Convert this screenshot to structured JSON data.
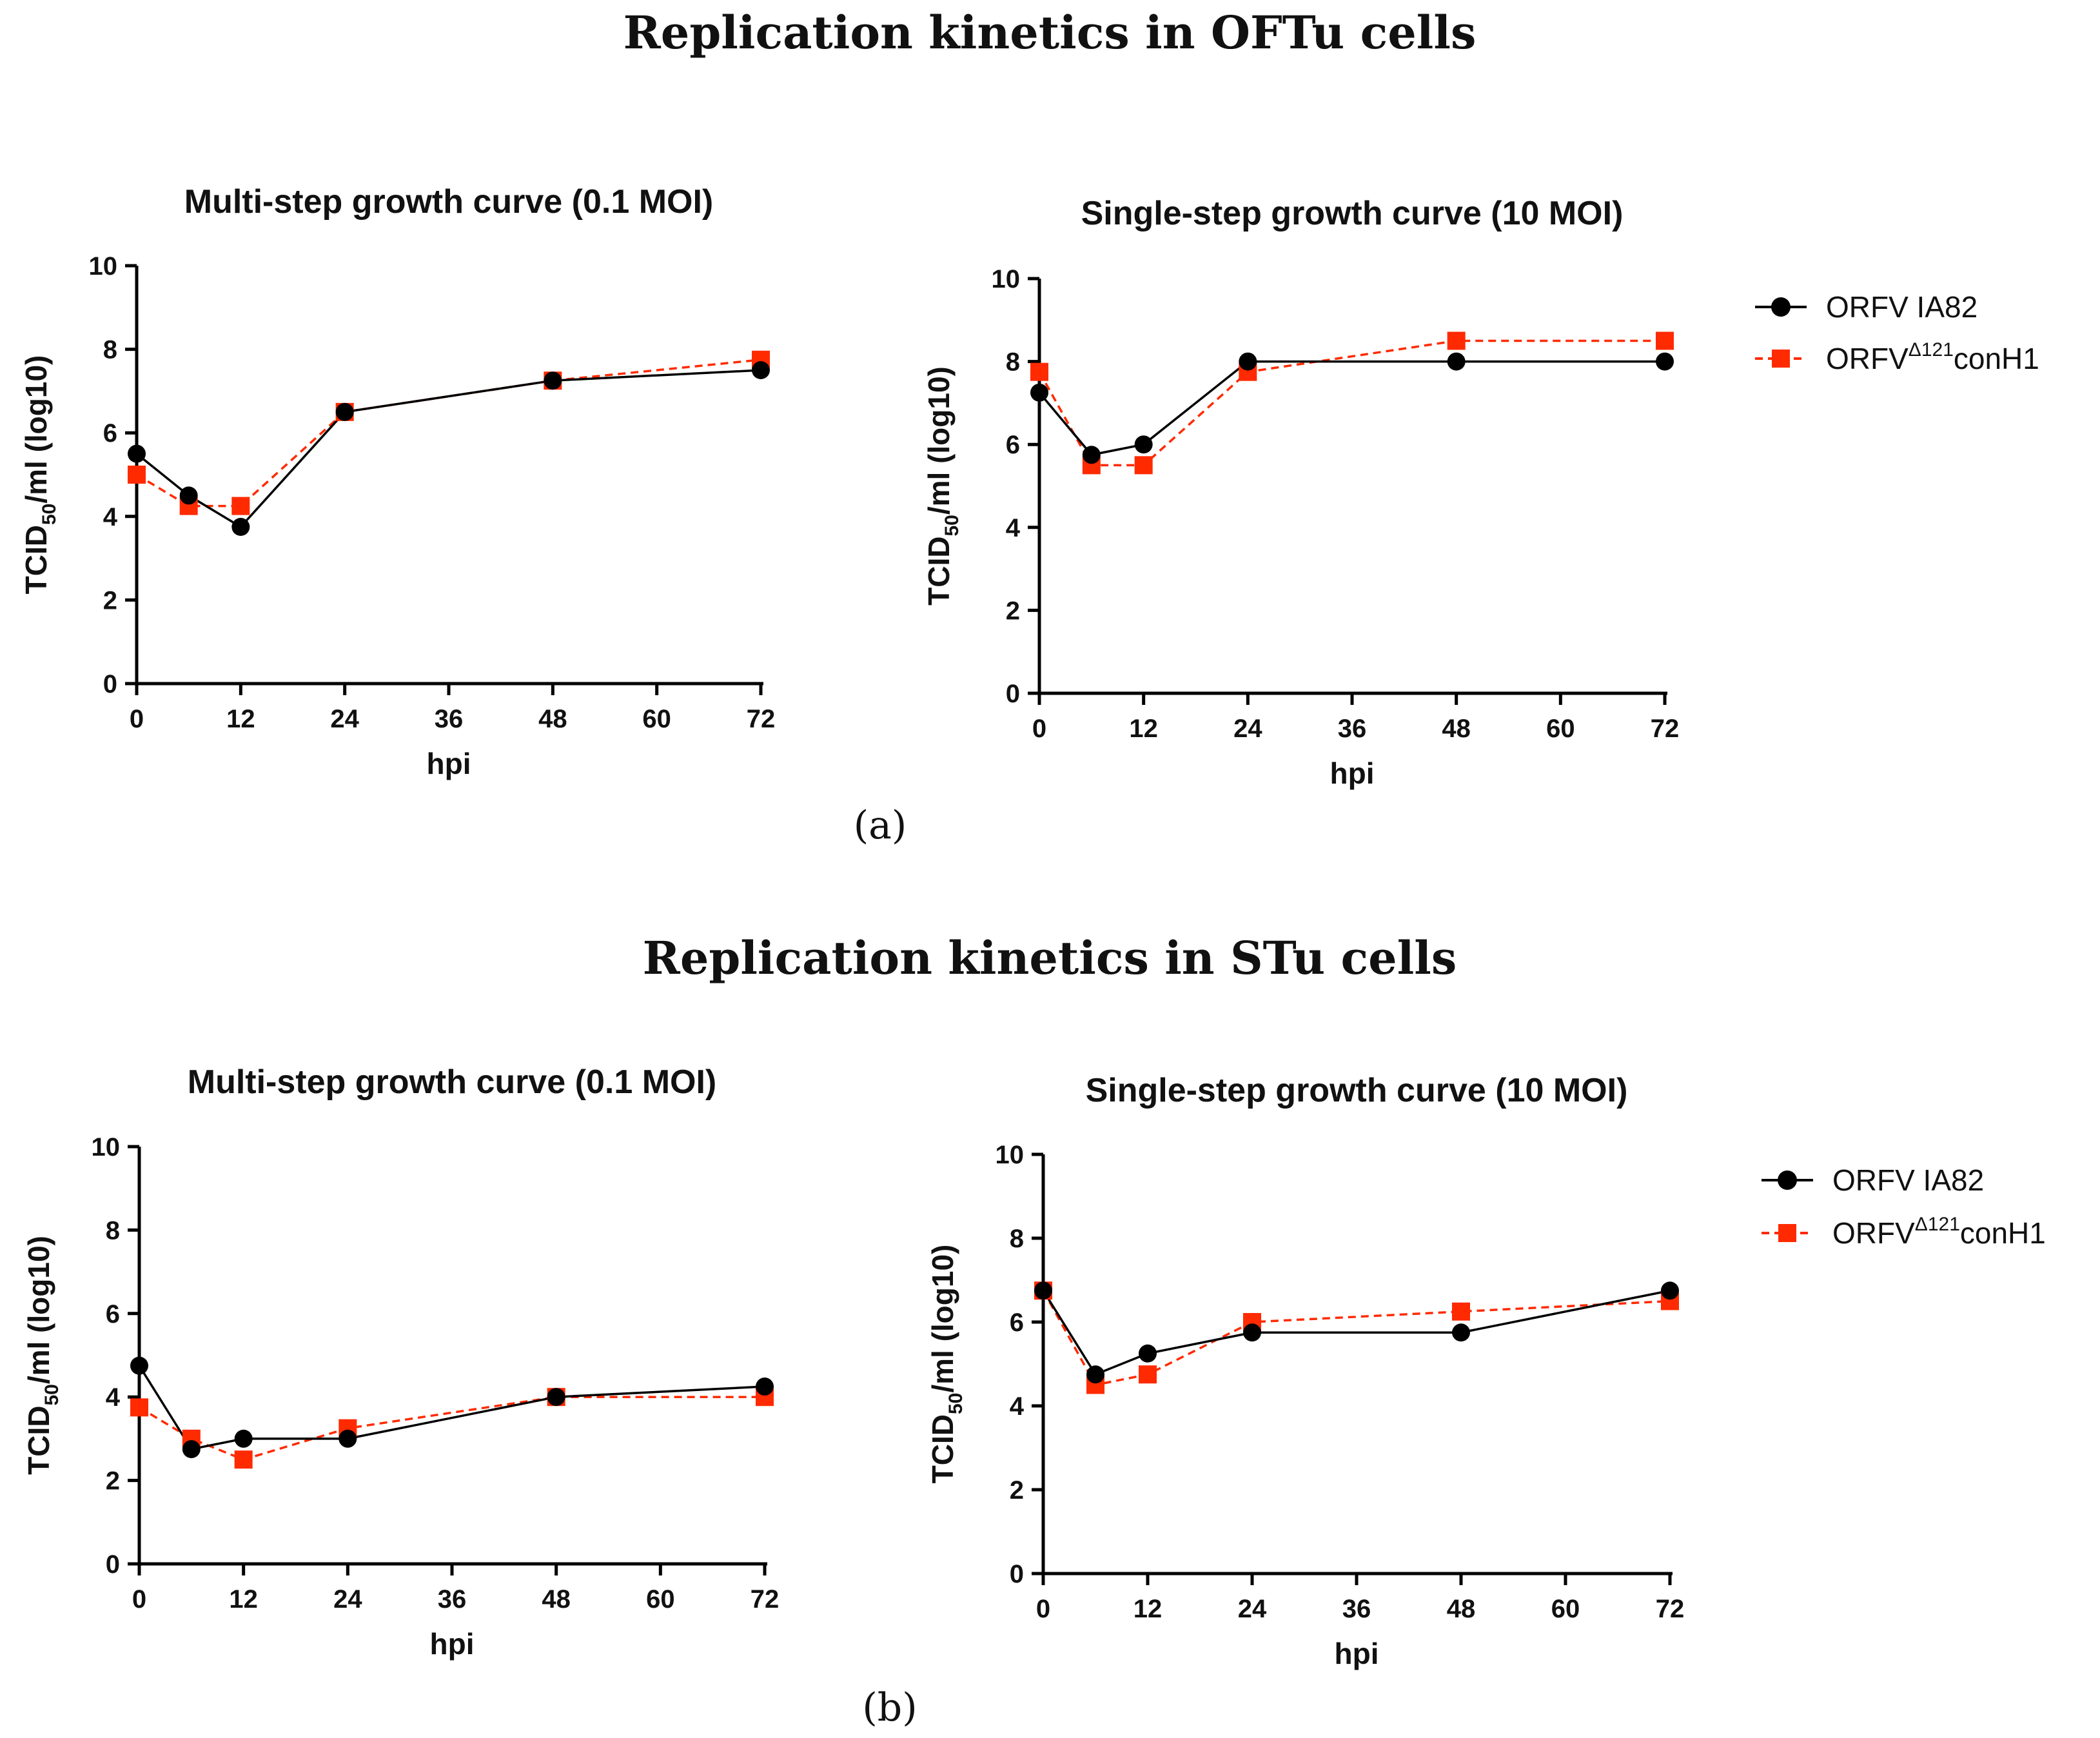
{
  "sections": [
    {
      "title": "Replication kinetics in OFTu cells",
      "panel_label": "(a)"
    },
    {
      "title": "Replication kinetics in STu cells",
      "panel_label": "(b)"
    }
  ],
  "legend": {
    "series1": "ORFV IA82",
    "series2_main": "ORFV",
    "series2_sup": "Δ121",
    "series2_suffix": "conH1"
  },
  "colors": {
    "series1": "#000000",
    "series2": "#ff2a00",
    "axis": "#000000"
  },
  "chart_data": [
    {
      "type": "line",
      "title": "Multi-step growth curve (0.1 MOI)",
      "xlabel": "hpi",
      "ylabel_main": "TCID",
      "ylabel_sub": "50",
      "ylabel_rest": "/ml (log10)",
      "x": [
        0,
        6,
        12,
        24,
        48,
        72
      ],
      "xticks": [
        0,
        12,
        24,
        36,
        48,
        60,
        72
      ],
      "yticks": [
        0,
        2,
        4,
        6,
        8,
        10
      ],
      "xlim": [
        0,
        72
      ],
      "ylim": [
        0,
        10
      ],
      "series": [
        {
          "name": "ORFV IA82",
          "values": [
            5.5,
            4.5,
            3.75,
            6.5,
            7.25,
            7.5
          ]
        },
        {
          "name": "ORFVΔ121conH1",
          "values": [
            5.0,
            4.25,
            4.25,
            6.5,
            7.25,
            7.75
          ]
        }
      ]
    },
    {
      "type": "line",
      "title": "Single-step growth curve (10 MOI)",
      "xlabel": "hpi",
      "ylabel_main": "TCID",
      "ylabel_sub": "50",
      "ylabel_rest": "/ml (log10)",
      "x": [
        0,
        6,
        12,
        24,
        48,
        72
      ],
      "xticks": [
        0,
        12,
        24,
        36,
        48,
        60,
        72
      ],
      "yticks": [
        0,
        2,
        4,
        6,
        8,
        10
      ],
      "xlim": [
        0,
        72
      ],
      "ylim": [
        0,
        10
      ],
      "series": [
        {
          "name": "ORFV IA82",
          "values": [
            7.25,
            5.75,
            6.0,
            8.0,
            8.0,
            8.0
          ]
        },
        {
          "name": "ORFVΔ121conH1",
          "values": [
            7.75,
            5.5,
            5.5,
            7.75,
            8.5,
            8.5
          ]
        }
      ]
    },
    {
      "type": "line",
      "title": "Multi-step growth curve (0.1 MOI)",
      "xlabel": "hpi",
      "ylabel_main": "TCID",
      "ylabel_sub": "50",
      "ylabel_rest": "/ml (log10)",
      "x": [
        0,
        6,
        12,
        24,
        48,
        72
      ],
      "xticks": [
        0,
        12,
        24,
        36,
        48,
        60,
        72
      ],
      "yticks": [
        0,
        2,
        4,
        6,
        8,
        10
      ],
      "xlim": [
        0,
        72
      ],
      "ylim": [
        0,
        10
      ],
      "series": [
        {
          "name": "ORFV IA82",
          "values": [
            4.75,
            2.75,
            3.0,
            3.0,
            4.0,
            4.25
          ]
        },
        {
          "name": "ORFVΔ121conH1",
          "values": [
            3.75,
            3.0,
            2.5,
            3.25,
            4.0,
            4.0
          ]
        }
      ]
    },
    {
      "type": "line",
      "title": "Single-step growth curve (10 MOI)",
      "xlabel": "hpi",
      "ylabel_main": "TCID",
      "ylabel_sub": "50",
      "ylabel_rest": "/ml (log10)",
      "x": [
        0,
        6,
        12,
        24,
        48,
        72
      ],
      "xticks": [
        0,
        12,
        24,
        36,
        48,
        60,
        72
      ],
      "yticks": [
        0,
        2,
        4,
        6,
        8,
        10
      ],
      "xlim": [
        0,
        72
      ],
      "ylim": [
        0,
        10
      ],
      "series": [
        {
          "name": "ORFV IA82",
          "values": [
            6.75,
            4.75,
            5.25,
            5.75,
            5.75,
            6.75
          ]
        },
        {
          "name": "ORFVΔ121conH1",
          "values": [
            6.75,
            4.5,
            4.75,
            6.0,
            6.25,
            6.5
          ]
        }
      ]
    }
  ]
}
